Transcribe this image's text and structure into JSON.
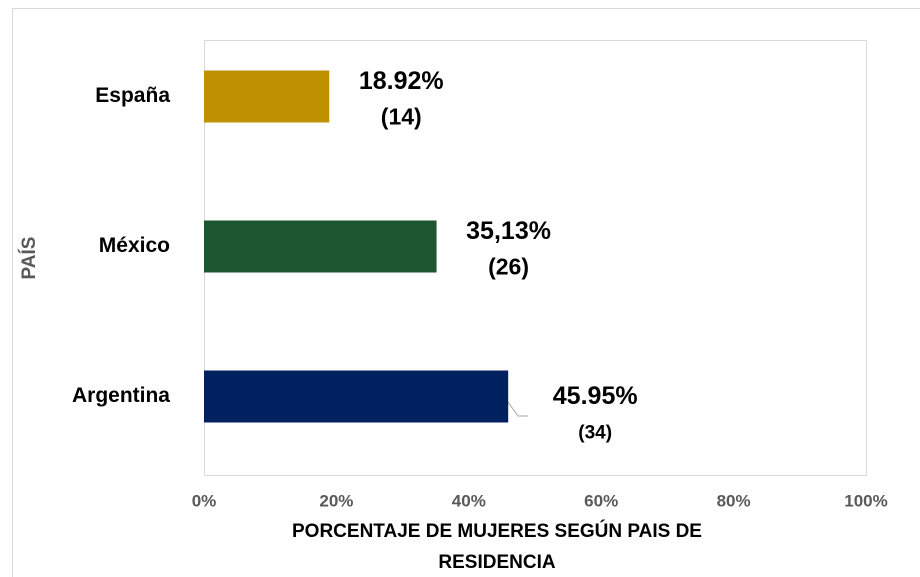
{
  "chart_data": {
    "type": "hbar",
    "categories": [
      "España",
      "México",
      "Argentina"
    ],
    "values": [
      18.92,
      35.13,
      45.95
    ],
    "value_labels": [
      "18.92%",
      "35,13%",
      "45.95%"
    ],
    "count_labels": [
      "(14)",
      "(26)",
      "(34)"
    ],
    "colors": [
      "#bf9000",
      "#1e5631",
      "#002060"
    ],
    "xlim": [
      0,
      100
    ],
    "xticks": [
      {
        "value": 0,
        "label": "0%"
      },
      {
        "value": 20,
        "label": "20%"
      },
      {
        "value": 40,
        "label": "40%"
      },
      {
        "value": 60,
        "label": "60%"
      },
      {
        "value": 80,
        "label": "80%"
      },
      {
        "value": 100,
        "label": "100%"
      }
    ],
    "xlabel": [
      "PORCENTAJE DE MUJERES SEGÚN PAIS DE",
      "RESIDENCIA"
    ],
    "ylabel": "PAÍS",
    "grid": false
  }
}
